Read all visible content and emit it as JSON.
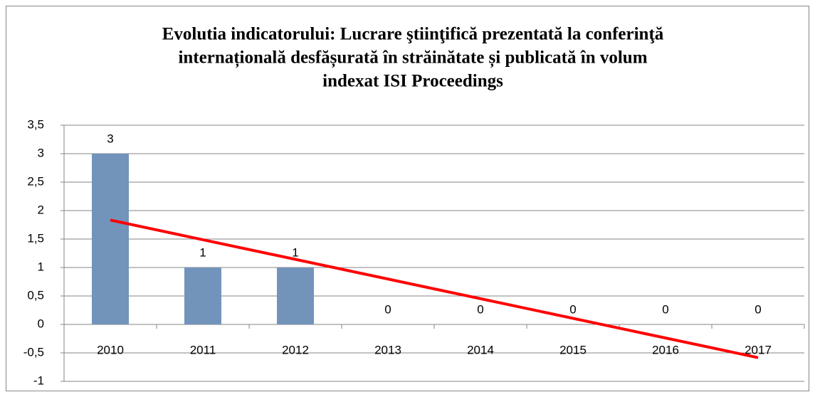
{
  "chart_data": {
    "type": "bar",
    "title": [
      "Evolutia indicatorului: Lucrare ştiinţifică prezentată la conferinţă",
      "internațională desfășurată în străinătate și publicată în volum",
      "indexat ISI Proceedings"
    ],
    "categories": [
      "2010",
      "2011",
      "2012",
      "2013",
      "2014",
      "2015",
      "2016",
      "2017"
    ],
    "values": [
      3,
      1,
      1,
      0,
      0,
      0,
      0,
      0
    ],
    "color": "#7294bb",
    "ylim": [
      -1,
      3.5
    ],
    "yticks": [
      -1,
      {
        "value": -0.5,
        "label": "-0,5"
      },
      0,
      {
        "value": 0.5,
        "label": "0,5"
      },
      1,
      {
        "value": 1.5,
        "label": "1,5"
      },
      2,
      {
        "value": 2.5,
        "label": "2,5"
      },
      3,
      {
        "value": 3.5,
        "label": "3,5"
      }
    ],
    "grid": true,
    "trendline": {
      "type": "linear",
      "color": "#ff0000"
    }
  }
}
